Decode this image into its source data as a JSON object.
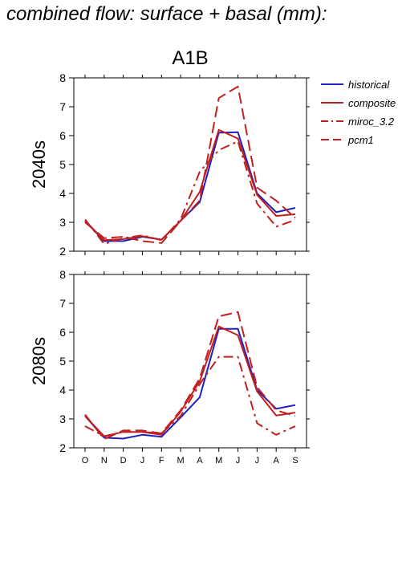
{
  "title": "combined flow: surface + basal (mm):",
  "chart_data": [
    {
      "type": "line",
      "scenario": "A1B",
      "row_label": "2040s",
      "categories": [
        "O",
        "N",
        "D",
        "J",
        "F",
        "M",
        "A",
        "M",
        "J",
        "J",
        "A",
        "S"
      ],
      "ylim": [
        2,
        8
      ],
      "yticks": [
        2,
        3,
        4,
        5,
        6,
        7,
        8
      ],
      "series": [
        {
          "name": "historical",
          "color": "#2020c0",
          "dash": "solid",
          "values": [
            3.05,
            2.35,
            2.35,
            2.5,
            2.4,
            3.05,
            3.7,
            6.1,
            6.12,
            4.0,
            3.35,
            3.5
          ]
        },
        {
          "name": "composite",
          "color": "#c02020",
          "dash": "solid",
          "values": [
            3.05,
            2.38,
            2.42,
            2.52,
            2.4,
            3.05,
            4.05,
            6.2,
            5.9,
            3.95,
            3.22,
            3.28
          ]
        },
        {
          "name": "miroc_3.2",
          "color": "#c02020",
          "dash": "dashdot",
          "values": [
            3.1,
            2.25,
            2.45,
            2.55,
            2.38,
            3.1,
            4.75,
            5.5,
            5.8,
            3.65,
            2.85,
            3.08
          ]
        },
        {
          "name": "pcm1",
          "color": "#c02020",
          "dash": "dashed",
          "values": [
            3.0,
            2.45,
            2.5,
            2.35,
            2.28,
            3.05,
            3.75,
            7.3,
            7.7,
            4.2,
            3.75,
            3.15
          ]
        }
      ]
    },
    {
      "type": "line",
      "scenario": "A1B",
      "row_label": "2080s",
      "categories": [
        "O",
        "N",
        "D",
        "J",
        "F",
        "M",
        "A",
        "M",
        "J",
        "J",
        "A",
        "S"
      ],
      "ylim": [
        2,
        8
      ],
      "yticks": [
        2,
        3,
        4,
        5,
        6,
        7,
        8
      ],
      "series": [
        {
          "name": "historical",
          "color": "#2020c0",
          "dash": "solid",
          "values": [
            3.1,
            2.35,
            2.32,
            2.45,
            2.38,
            3.05,
            3.75,
            6.12,
            6.12,
            4.0,
            3.35,
            3.48
          ]
        },
        {
          "name": "composite",
          "color": "#c02020",
          "dash": "solid",
          "values": [
            3.1,
            2.4,
            2.55,
            2.55,
            2.45,
            3.25,
            4.3,
            6.2,
            5.9,
            3.95,
            3.12,
            3.22
          ]
        },
        {
          "name": "miroc_3.2",
          "color": "#c02020",
          "dash": "dashdot",
          "values": [
            2.75,
            2.4,
            2.55,
            2.55,
            2.5,
            3.1,
            4.2,
            5.15,
            5.15,
            2.85,
            2.45,
            2.75
          ]
        },
        {
          "name": "pcm1",
          "color": "#c02020",
          "dash": "dashed",
          "values": [
            3.15,
            2.3,
            2.6,
            2.6,
            2.5,
            3.3,
            4.4,
            6.55,
            6.7,
            4.1,
            3.3,
            3.1
          ]
        }
      ]
    }
  ]
}
